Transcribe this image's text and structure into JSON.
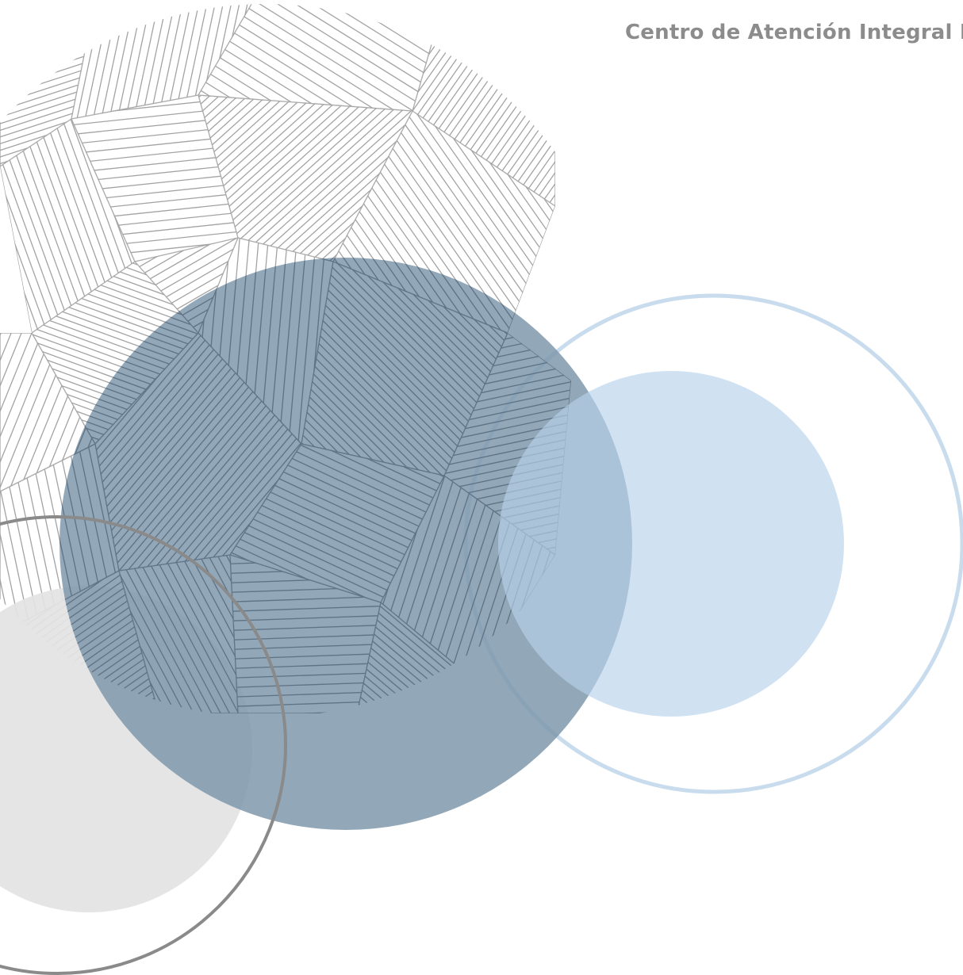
{
  "header": {
    "title": "Centro de Atención Integral M"
  },
  "decor": {
    "colors": {
      "line_art": "#a3a3a3",
      "line_art_dark": "#5f7384",
      "steel_circle": "#7f98ab",
      "light_blue": "#cde0f0",
      "light_blue_ring": "#c8dcee",
      "gray_disc": "#e3e3e3",
      "gray_ring": "#8a8a8a"
    },
    "icons": [
      "geometric-line-art-circle",
      "steel-blue-circle",
      "light-blue-circle",
      "light-blue-ring",
      "gray-disc",
      "gray-ring"
    ]
  }
}
